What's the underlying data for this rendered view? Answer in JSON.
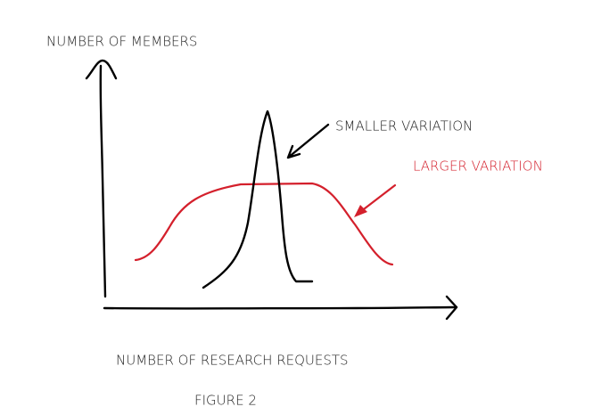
{
  "y_axis_label": "NUMBER OF MEMBERS",
  "x_axis_label": "NUMBER OF RESEARCH REQUESTS",
  "annotations": {
    "smaller": "SMALLER VARIATION",
    "larger": "LARGER VARIATION"
  },
  "caption": "FIGURE 2"
}
